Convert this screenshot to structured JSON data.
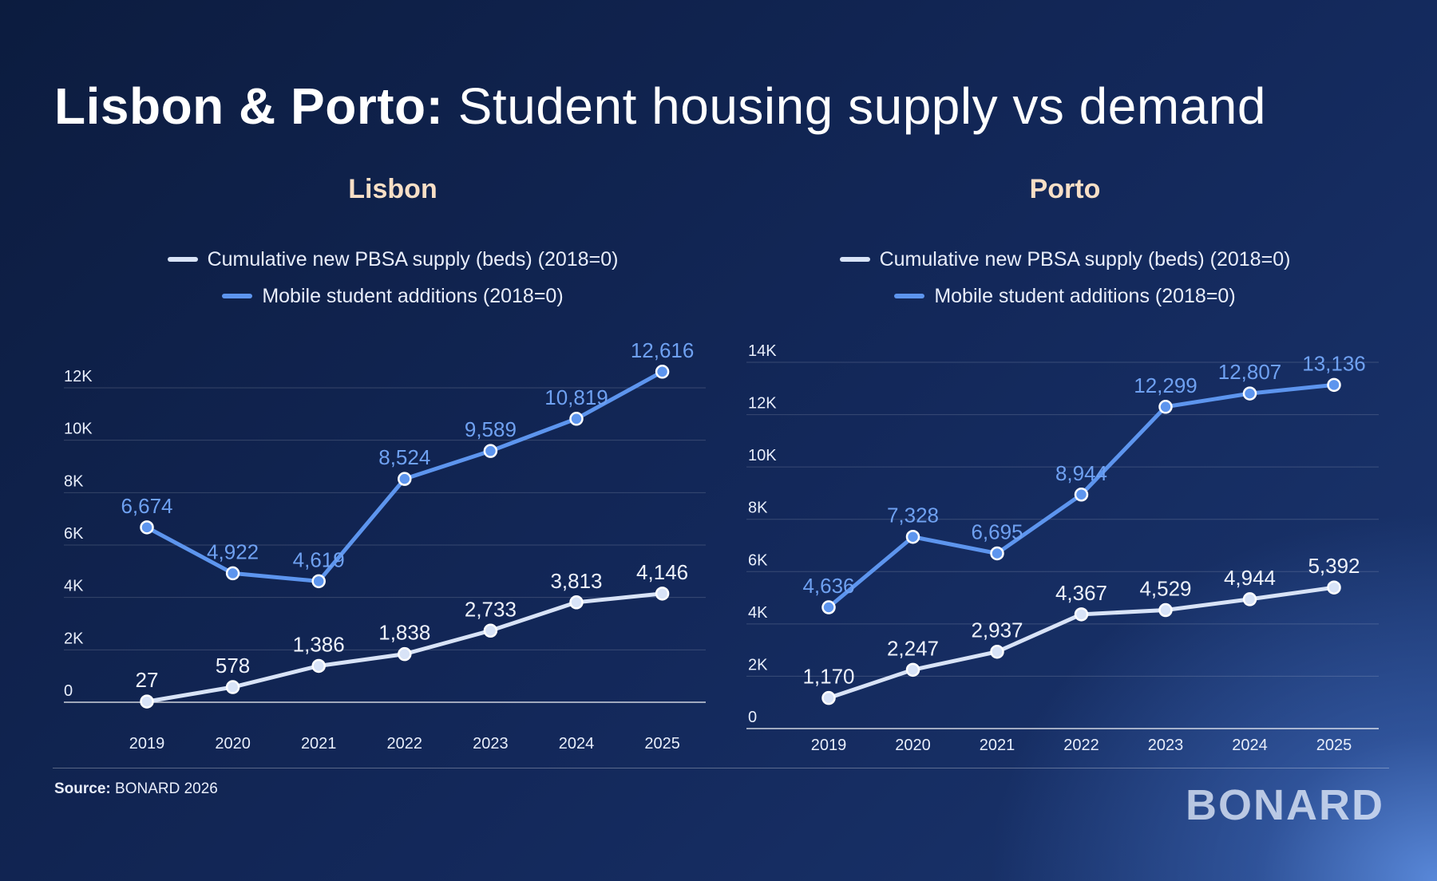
{
  "title": {
    "bold": "Lisbon & Porto:",
    "rest": " Student housing supply vs demand"
  },
  "footer": {
    "source_label": "Source:",
    "source_text": " BONARD 2026",
    "logo": "BONARD"
  },
  "colors": {
    "supply": "#d8e3f7",
    "demand": "#5d95ee",
    "supply_label": "#eef2fb",
    "demand_label": "#6fa1f1",
    "panel_title": "#f8dfc6"
  },
  "chart_data": [
    {
      "type": "line",
      "title": "Lisbon",
      "x": [
        "2019",
        "2020",
        "2021",
        "2022",
        "2023",
        "2024",
        "2025"
      ],
      "ylim": [
        0,
        12000
      ],
      "yticks": [
        0,
        2000,
        4000,
        6000,
        8000,
        10000,
        12000
      ],
      "ytick_labels": [
        "0",
        "2K",
        "4K",
        "6K",
        "8K",
        "10K",
        "12K"
      ],
      "grid": true,
      "legend": "top-center",
      "series": [
        {
          "name": "Cumulative new PBSA supply (beds) (2018=0)",
          "key": "supply",
          "values": [
            27,
            578,
            1386,
            1838,
            2733,
            3813,
            4146
          ],
          "labels": [
            "27",
            "578",
            "1,386",
            "1,838",
            "2,733",
            "3,813",
            "4,146"
          ]
        },
        {
          "name": "Mobile student additions (2018=0)",
          "key": "demand",
          "values": [
            6674,
            4922,
            4619,
            8524,
            9589,
            10819,
            12616
          ],
          "labels": [
            "6,674",
            "4,922",
            "4,619",
            "8,524",
            "9,589",
            "10,819",
            "12,616"
          ]
        }
      ]
    },
    {
      "type": "line",
      "title": "Porto",
      "x": [
        "2019",
        "2020",
        "2021",
        "2022",
        "2023",
        "2024",
        "2025"
      ],
      "ylim": [
        0,
        14000
      ],
      "yticks": [
        0,
        2000,
        4000,
        6000,
        8000,
        10000,
        12000,
        14000
      ],
      "ytick_labels": [
        "0",
        "2K",
        "4K",
        "6K",
        "8K",
        "10K",
        "12K",
        "14K"
      ],
      "grid": true,
      "legend": "top-center",
      "series": [
        {
          "name": "Cumulative new PBSA supply (beds) (2018=0)",
          "key": "supply",
          "values": [
            1170,
            2247,
            2937,
            4367,
            4529,
            4944,
            5392
          ],
          "labels": [
            "1,170",
            "2,247",
            "2,937",
            "4,367",
            "4,529",
            "4,944",
            "5,392"
          ]
        },
        {
          "name": "Mobile student additions (2018=0)",
          "key": "demand",
          "values": [
            4636,
            7328,
            6695,
            8944,
            12299,
            12807,
            13136
          ],
          "labels": [
            "4,636",
            "7,328",
            "6,695",
            "8,944",
            "12,299",
            "12,807",
            "13,136"
          ]
        }
      ]
    }
  ]
}
